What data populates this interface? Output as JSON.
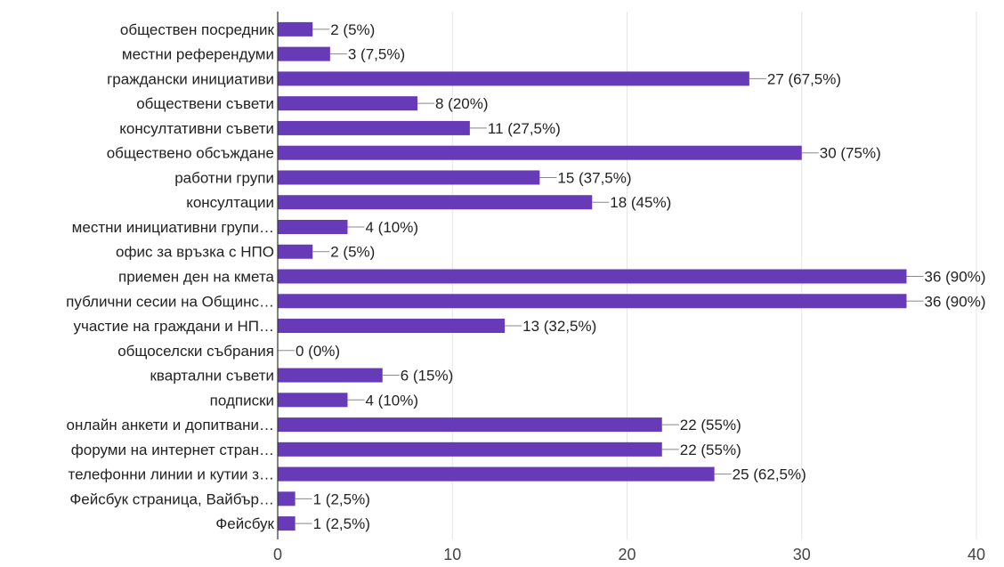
{
  "chart_data": {
    "type": "bar",
    "orientation": "horizontal",
    "categories": [
      "обществен посредник",
      "местни референдуми",
      "граждански инициативи",
      "обществени съвети",
      "консултативни съвети",
      "обществено обсъждане",
      "работни групи",
      "консултации",
      "местни инициативни групи…",
      "офис за връзка с НПО",
      "приемен ден на кмета",
      "публични сесии на Общинс…",
      "участие на граждани и НП…",
      "общоселски събрания",
      "квартални съвети",
      "подписки",
      "онлайн анкети и допитвани…",
      "форуми на интернет стран…",
      "телефонни линии и кутии з…",
      "Фейсбук страница, Вайбър…",
      "Фейсбук"
    ],
    "values": [
      2,
      3,
      27,
      8,
      11,
      30,
      15,
      18,
      4,
      2,
      36,
      36,
      13,
      0,
      6,
      4,
      22,
      22,
      25,
      1,
      1
    ],
    "data_labels": [
      "2 (5%)",
      "3 (7,5%)",
      "27 (67,5%)",
      "8 (20%)",
      "11 (27,5%)",
      "30 (75%)",
      "15 (37,5%)",
      "18 (45%)",
      "4 (10%)",
      "2 (5%)",
      "36 (90%)",
      "36 (90%)",
      "13 (32,5%)",
      "0 (0%)",
      "6 (15%)",
      "4 (10%)",
      "22 (55%)",
      "22 (55%)",
      "25 (62,5%)",
      "1 (2,5%)",
      "1 (2,5%)"
    ],
    "xlim": [
      0,
      40
    ],
    "xticks": [
      0,
      10,
      20,
      30,
      40
    ],
    "xtick_labels": [
      "0",
      "10",
      "20",
      "30",
      "40"
    ],
    "title": "",
    "xlabel": "",
    "ylabel": "",
    "grid": true,
    "bar_color": "#673ab7"
  }
}
